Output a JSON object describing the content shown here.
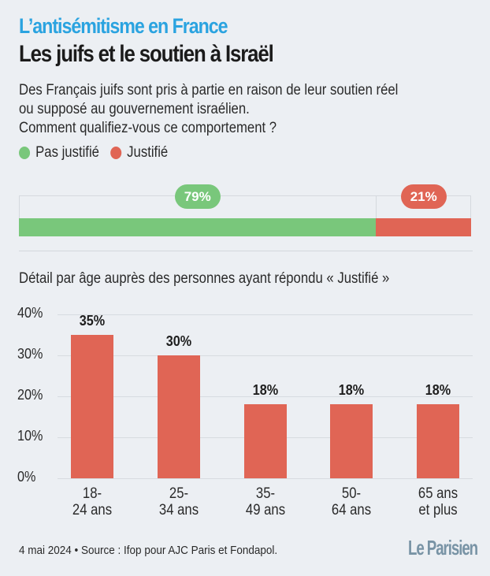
{
  "header": {
    "kicker": "L’antisémitisme en France",
    "title": "Les juifs et le soutien à Israël",
    "subtitle_lines": [
      "Des Français juifs sont pris à partie en raison de leur soutien réel",
      "ou supposé au gouvernement israélien.",
      "Comment qualifiez-vous ce comportement ?"
    ]
  },
  "colors": {
    "background": "#eceff3",
    "kicker": "#2aa3e0",
    "pas_justifie": "#79c77b",
    "justifie": "#e06555",
    "brand": "#7893a5"
  },
  "footer": {
    "source": "4 mai 2024 • Source : Ifop pour AJC Paris et Fondapol.",
    "brand": "Le Parisien"
  },
  "chart_data": [
    {
      "type": "bar",
      "orientation": "horizontal-stacked",
      "title": "Comment qualifiez-vous ce comportement ?",
      "legend": [
        "Pas justifié",
        "Justifié"
      ],
      "legend_position": "top-left",
      "series": [
        {
          "name": "Pas justifié",
          "value": 79,
          "label": "79%",
          "color": "#79c77b"
        },
        {
          "name": "Justifié",
          "value": 21,
          "label": "21%",
          "color": "#e06555"
        }
      ],
      "xlim": [
        0,
        100
      ]
    },
    {
      "type": "bar",
      "title": "Détail par âge auprès des personnes ayant répondu « Justifié »",
      "categories": [
        "18-\n24 ans",
        "25-\n34 ans",
        "35-\n49 ans",
        "50-\n64 ans",
        "65 ans\net plus"
      ],
      "category_lines": [
        [
          "18-",
          "24 ans"
        ],
        [
          "25-",
          "34 ans"
        ],
        [
          "35-",
          "49 ans"
        ],
        [
          "50-",
          "64 ans"
        ],
        [
          "65 ans",
          "et plus"
        ]
      ],
      "values": [
        35,
        30,
        18,
        18,
        18
      ],
      "value_labels": [
        "35%",
        "30%",
        "18%",
        "18%",
        "18%"
      ],
      "yticks": [
        "0%",
        "10%",
        "20%",
        "30%",
        "40%"
      ],
      "ytick_values": [
        0,
        10,
        20,
        30,
        40
      ],
      "ylim": [
        0,
        40
      ],
      "grid": true,
      "xlabel": "",
      "ylabel": "",
      "color": "#e06555"
    }
  ]
}
